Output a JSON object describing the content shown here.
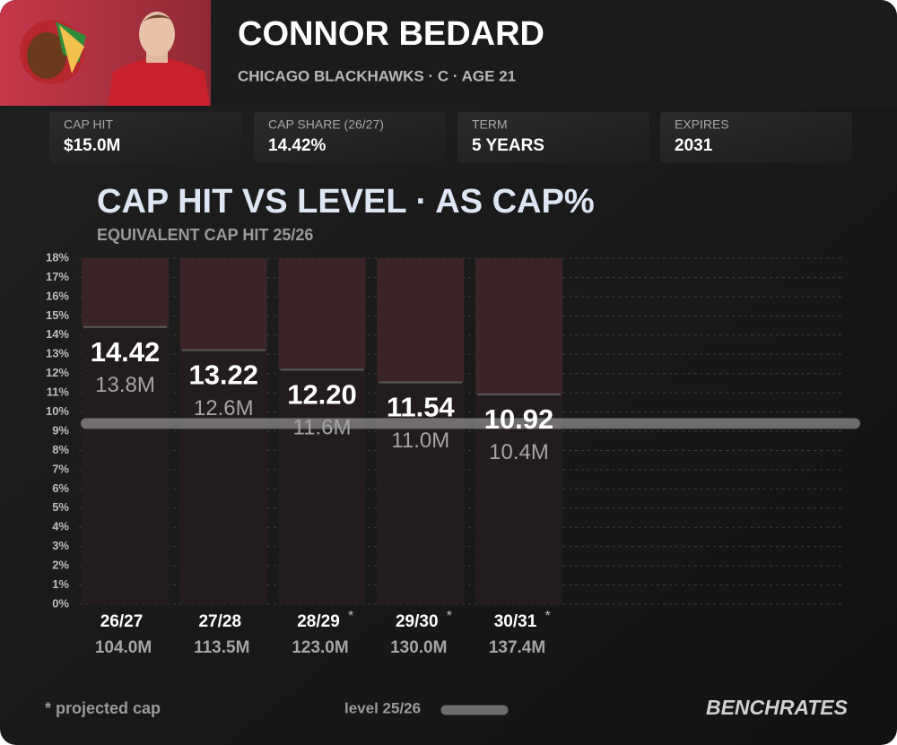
{
  "header": {
    "name": "CONNOR BEDARD",
    "details": "CHICAGO BLACKHAWKS · C · AGE 21"
  },
  "stats": [
    {
      "label": "CAP HIT",
      "value": "$15.0M"
    },
    {
      "label": "CAP SHARE (26/27)",
      "value": "14.42%"
    },
    {
      "label": "TERM",
      "value": "5 YEARS"
    },
    {
      "label": "EXPIRES",
      "value": "2031"
    }
  ],
  "chart_data": {
    "type": "bar",
    "title": "CAP HIT VS LEVEL · AS CAP%",
    "subtitle": "EQUIVALENT CAP HIT 25/26",
    "categories": [
      "26/27",
      "27/28",
      "28/29",
      "29/30",
      "30/31"
    ],
    "projected_marks": [
      null,
      null,
      "*",
      "*",
      "*"
    ],
    "cap_labels": [
      "104.0M",
      "113.5M",
      "123.0M",
      "130.0M",
      "137.4M"
    ],
    "values": [
      14.42,
      13.22,
      12.2,
      11.54,
      10.92
    ],
    "value_labels": [
      "14.42",
      "13.22",
      "12.20",
      "11.54",
      "10.92"
    ],
    "equivalent_labels": [
      "13.8M",
      "12.6M",
      "11.6M",
      "11.0M",
      "10.4M"
    ],
    "color": "#221c1e",
    "track_color": "#3a2428",
    "reference": {
      "value": 9.4,
      "label": "level 25/26",
      "color": "#8a8a8a"
    },
    "ylim": [
      0,
      18
    ],
    "yticks": [
      {
        "value": 0,
        "label": "0%"
      },
      {
        "value": 1,
        "label": "1%"
      },
      {
        "value": 2,
        "label": "2%"
      },
      {
        "value": 3,
        "label": "3%"
      },
      {
        "value": 4,
        "label": "4%"
      },
      {
        "value": 5,
        "label": "5%"
      },
      {
        "value": 6,
        "label": "6%"
      },
      {
        "value": 7,
        "label": "7%"
      },
      {
        "value": 8,
        "label": "8%"
      },
      {
        "value": 9,
        "label": "9%"
      },
      {
        "value": 10,
        "label": "10%"
      },
      {
        "value": 11,
        "label": "11%"
      },
      {
        "value": 12,
        "label": "12%"
      },
      {
        "value": 13,
        "label": "13%"
      },
      {
        "value": 14,
        "label": "14%"
      },
      {
        "value": 15,
        "label": "15%"
      },
      {
        "value": 16,
        "label": "16%"
      },
      {
        "value": 17,
        "label": "17%"
      },
      {
        "value": 18,
        "label": "18%"
      }
    ],
    "grid": true
  },
  "footer": {
    "note": "* projected cap",
    "brand": "BENCHRATES"
  }
}
